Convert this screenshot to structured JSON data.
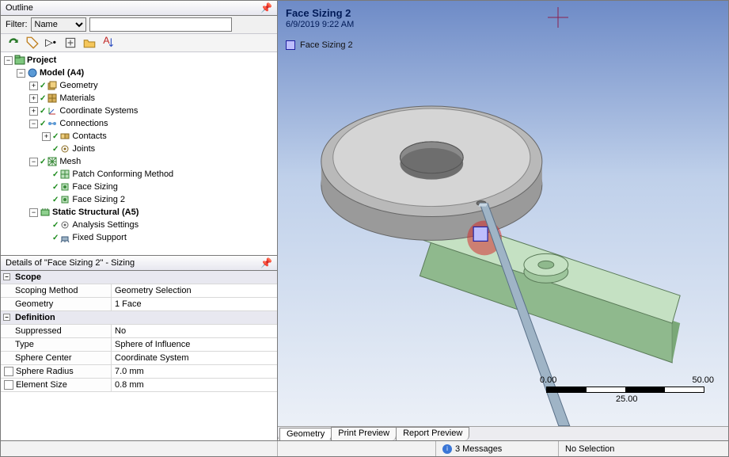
{
  "outline": {
    "title": "Outline",
    "filter_label": "Filter:",
    "filter_type": "Name",
    "tree": [
      {
        "i": 0,
        "exp": "-",
        "chk": false,
        "icon": "project",
        "label": "Project",
        "bold": true
      },
      {
        "i": 1,
        "exp": "-",
        "chk": false,
        "icon": "model",
        "label": "Model (A4)",
        "bold": true
      },
      {
        "i": 2,
        "exp": "+",
        "chk": true,
        "icon": "geom",
        "label": "Geometry"
      },
      {
        "i": 2,
        "exp": "+",
        "chk": true,
        "icon": "mat",
        "label": "Materials"
      },
      {
        "i": 2,
        "exp": "+",
        "chk": true,
        "icon": "cs",
        "label": "Coordinate Systems"
      },
      {
        "i": 2,
        "exp": "-",
        "chk": true,
        "icon": "conn",
        "label": "Connections"
      },
      {
        "i": 3,
        "exp": "+",
        "chk": true,
        "icon": "contact",
        "label": "Contacts"
      },
      {
        "i": 3,
        "exp": " ",
        "chk": true,
        "icon": "joint",
        "label": "Joints"
      },
      {
        "i": 2,
        "exp": "-",
        "chk": true,
        "icon": "mesh",
        "label": "Mesh"
      },
      {
        "i": 3,
        "exp": " ",
        "chk": true,
        "icon": "method",
        "label": "Patch Conforming Method"
      },
      {
        "i": 3,
        "exp": " ",
        "chk": true,
        "icon": "sizing",
        "label": "Face Sizing"
      },
      {
        "i": 3,
        "exp": " ",
        "chk": true,
        "icon": "sizing",
        "label": "Face Sizing 2"
      },
      {
        "i": 2,
        "exp": "-",
        "chk": false,
        "icon": "static",
        "label": "Static Structural (A5)",
        "bold": true
      },
      {
        "i": 3,
        "exp": " ",
        "chk": true,
        "icon": "settings",
        "label": "Analysis Settings"
      },
      {
        "i": 3,
        "exp": " ",
        "chk": true,
        "icon": "support",
        "label": "Fixed Support"
      }
    ]
  },
  "details": {
    "title": "Details of \"Face Sizing 2\" - Sizing",
    "cats": [
      {
        "name": "Scope",
        "rows": [
          {
            "n": "Scoping Method",
            "v": "Geometry Selection"
          },
          {
            "n": "Geometry",
            "v": "1 Face"
          }
        ]
      },
      {
        "name": "Definition",
        "rows": [
          {
            "n": "Suppressed",
            "v": "No"
          },
          {
            "n": "Type",
            "v": "Sphere of Influence"
          },
          {
            "n": "Sphere Center",
            "v": "Coordinate System"
          },
          {
            "n": "Sphere Radius",
            "v": "7.0 mm",
            "ck": true
          },
          {
            "n": "Element Size",
            "v": "0.8 mm",
            "ck": true
          }
        ]
      }
    ]
  },
  "viewport": {
    "title": "Face Sizing 2",
    "timestamp": "6/9/2019 9:22 AM",
    "legend_label": "Face Sizing 2",
    "legend_color": "#bdbdfc",
    "bg_top": "#6e8bc7",
    "bg_mid": "#bfd0ea",
    "bg_bot": "#eef2f8",
    "ruler": {
      "start": "0.00",
      "mid": "25.00",
      "end": "50.00"
    },
    "tabs": [
      "Geometry",
      "Print Preview",
      "Report Preview"
    ],
    "active_tab": 0,
    "sphere_color": "#d22f2f",
    "disk_fill": "#b9b9b9",
    "disk_top": "#d5d5d5",
    "plate_fill": "#a9cfa7",
    "plate_top": "#c5e1c3",
    "pin_fill": "#9fb4c6"
  },
  "status": {
    "messages": "3 Messages",
    "selection": "No Selection"
  }
}
